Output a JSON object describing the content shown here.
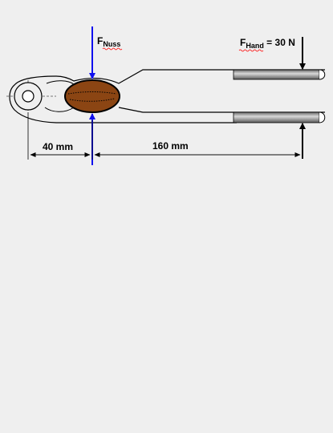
{
  "labels": {
    "f_nuss_symbol": "F",
    "f_nuss_sub": "Nuss",
    "f_hand_symbol": "F",
    "f_hand_sub": "Hand",
    "f_hand_value": " = 30 N",
    "dim_left": "40 mm",
    "dim_right": "160 mm"
  },
  "colors": {
    "background": "#efefef",
    "outline": "#000000",
    "nut": "#8b4513",
    "force_nut": "#1010ee",
    "force_hand": "#000000",
    "grip": "#9a9a9a",
    "spellcheck": "#ff0000"
  }
}
